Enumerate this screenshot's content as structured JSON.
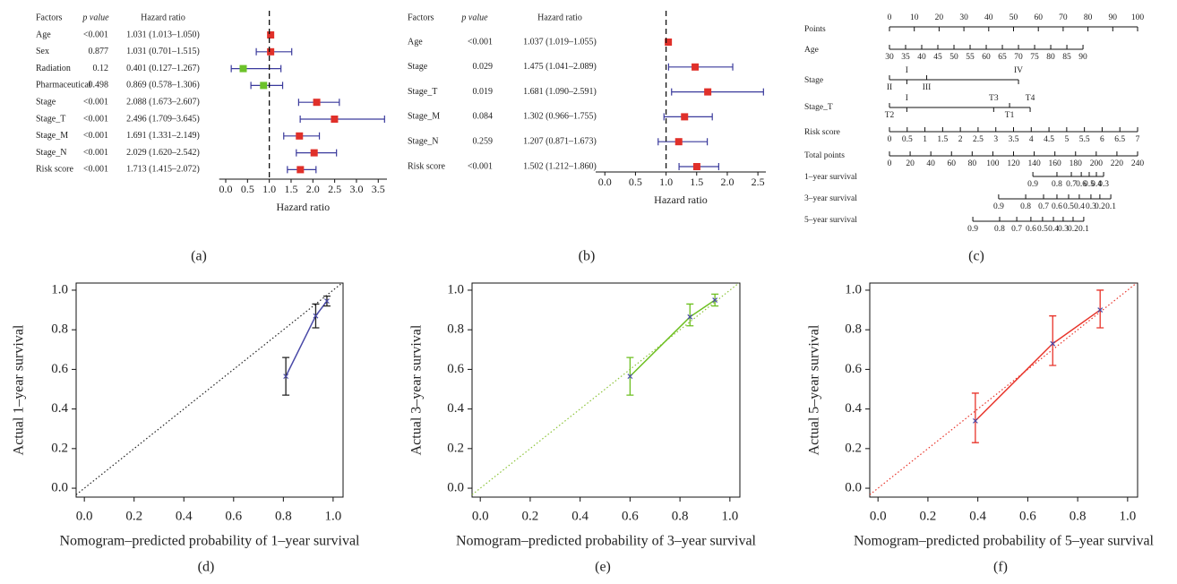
{
  "chart_data": [
    {
      "type": "forest",
      "panel": "(a)",
      "columns": [
        "Factors",
        "p value",
        "Hazard ratio"
      ],
      "factors": [
        "Age",
        "Sex",
        "Radiation",
        "Pharmaceutical",
        "Stage",
        "Stage_T",
        "Stage_M",
        "Stage_N",
        "Risk score"
      ],
      "p_values": [
        "<0.001",
        0.877,
        0.12,
        0.498,
        "<0.001",
        "<0.001",
        "<0.001",
        "<0.001",
        "<0.001"
      ],
      "hr": [
        1.031,
        1.031,
        0.401,
        0.869,
        2.088,
        2.496,
        1.691,
        2.029,
        1.713
      ],
      "lower": [
        1.013,
        0.701,
        0.127,
        0.578,
        1.673,
        1.709,
        1.331,
        1.62,
        1.415
      ],
      "upper": [
        1.05,
        1.515,
        1.267,
        1.306,
        2.607,
        3.645,
        2.149,
        2.542,
        2.072
      ],
      "hr_labels": [
        "1.031 (1.013–1.050)",
        "1.031 (0.701–1.515)",
        "0.401 (0.127–1.267)",
        "0.869 (0.578–1.306)",
        "2.088 (1.673–2.607)",
        "2.496 (1.709–3.645)",
        "1.691 (1.331–2.149)",
        "2.029 (1.620–2.542)",
        "1.713 (1.415–2.072)"
      ],
      "colors": [
        "#e0302a",
        "#e0302a",
        "#6cc22a",
        "#6cc22a",
        "#e0302a",
        "#e0302a",
        "#e0302a",
        "#e0302a",
        "#e0302a"
      ],
      "error_color": "#3a3a9c",
      "reference": 1,
      "xlim": [
        -0.15,
        3.7
      ],
      "xticks": [
        {
          "value": 0,
          "label": "0.0"
        },
        0.5,
        {
          "value": 1,
          "label": "1.0"
        },
        1.5,
        {
          "value": 2,
          "label": "2.0"
        },
        2.5,
        {
          "value": 3,
          "label": "3.0"
        },
        3.5
      ],
      "xlabel": "Hazard ratio"
    },
    {
      "type": "forest",
      "panel": "(b)",
      "columns": [
        "Factors",
        "p value",
        "Hazard ratio"
      ],
      "factors": [
        "Age",
        "Stage",
        "Stage_T",
        "Stage_M",
        "Stage_N",
        "Risk score"
      ],
      "p_values": [
        "<0.001",
        0.029,
        0.019,
        0.084,
        0.259,
        "<0.001"
      ],
      "hr": [
        1.037,
        1.475,
        1.681,
        1.302,
        1.207,
        1.502
      ],
      "lower": [
        1.019,
        1.041,
        1.09,
        0.966,
        0.871,
        1.212
      ],
      "upper": [
        1.055,
        2.089,
        2.591,
        1.755,
        1.673,
        1.86
      ],
      "hr_labels": [
        "1.037 (1.019–1.055)",
        "1.475 (1.041–2.089)",
        "1.681 (1.090–2.591)",
        "1.302 (0.966–1.755)",
        "1.207 (0.871–1.673)",
        "1.502 (1.212–1.860)"
      ],
      "colors": [
        "#e0302a",
        "#e0302a",
        "#e0302a",
        "#e0302a",
        "#e0302a",
        "#e0302a"
      ],
      "error_color": "#3a3a9c",
      "reference": 1,
      "xlim": [
        -0.15,
        2.63
      ],
      "xticks": [
        {
          "value": 0,
          "label": "0.0"
        },
        0.5,
        {
          "value": 1,
          "label": "1.0"
        },
        1.5,
        {
          "value": 2,
          "label": "2.0"
        },
        2.5
      ],
      "xlabel": "Hazard ratio"
    },
    {
      "type": "nomogram",
      "panel": "(c)",
      "points_lim": [
        0,
        100
      ],
      "rows": [
        {
          "name": "Points",
          "ticks": [
            0,
            10,
            20,
            30,
            40,
            50,
            60,
            70,
            80,
            90,
            100
          ],
          "below": false
        },
        {
          "name": "Age",
          "ticks": [
            30,
            35,
            40,
            45,
            50,
            55,
            60,
            65,
            70,
            75,
            80,
            85,
            90
          ],
          "pos": [
            0,
            6.5,
            13,
            19.5,
            26,
            32.5,
            39,
            45.5,
            52,
            58.5,
            65,
            71.5,
            78
          ],
          "below": true
        },
        {
          "name": "Stage",
          "ticks": [
            "I",
            "II",
            "III",
            "IV"
          ],
          "pos": [
            7,
            0,
            15,
            52
          ],
          "below": [
            false,
            true,
            true,
            false
          ]
        },
        {
          "name": "Stage_T",
          "ticks": [
            "I",
            "T3",
            "T4",
            "T2",
            "T1"
          ],
          "pos": [
            7,
            42,
            56.7,
            0,
            48.4
          ],
          "below": [
            false,
            false,
            false,
            true,
            true
          ]
        },
        {
          "name": "Risk score",
          "ticks": [
            0,
            0.5,
            1,
            1.5,
            2,
            2.5,
            3,
            3.5,
            4,
            4.5,
            5,
            5.5,
            6,
            6.5,
            7
          ],
          "pos": [
            0,
            7.14,
            14.29,
            21.43,
            28.57,
            35.71,
            42.86,
            50,
            57.14,
            64.29,
            71.43,
            78.57,
            85.71,
            92.86,
            100
          ],
          "below": true
        },
        {
          "name": "Total points",
          "ticks": [
            0,
            20,
            40,
            60,
            80,
            100,
            120,
            140,
            160,
            180,
            200,
            220,
            240
          ],
          "pos": [
            0,
            8.33,
            16.67,
            25,
            33.33,
            41.67,
            50,
            58.33,
            66.67,
            75,
            83.33,
            91.67,
            100
          ],
          "below": true
        },
        {
          "name": "1–year survival",
          "ticks": [
            0.9,
            0.8,
            0.7,
            0.6,
            0.5,
            0.4,
            0.3
          ],
          "pos": [
            57.8,
            67.5,
            73.3,
            77.3,
            80.5,
            83.4,
            86.3
          ],
          "below": true
        },
        {
          "name": "3–year survival",
          "ticks": [
            0.9,
            0.8,
            0.7,
            0.6,
            0.5,
            0.4,
            0.3,
            0.2,
            0.1
          ],
          "pos": [
            44,
            54.9,
            62.1,
            67.5,
            72.2,
            76.5,
            81.2,
            84.8,
            89.2
          ],
          "below": true
        },
        {
          "name": "5–year survival",
          "ticks": [
            0.9,
            0.8,
            0.7,
            0.6,
            0.5,
            0.4,
            0.3,
            0.2,
            0.1
          ],
          "pos": [
            33.6,
            44.4,
            51.3,
            57,
            61.7,
            66.1,
            70,
            74,
            78.3
          ],
          "below": true
        }
      ]
    },
    {
      "type": "calibration",
      "panel": "(d)",
      "x": [
        0.81,
        0.93,
        0.975
      ],
      "y": [
        0.565,
        0.87,
        0.945
      ],
      "lower": [
        0.47,
        0.81,
        0.92
      ],
      "upper": [
        0.66,
        0.93,
        0.97
      ],
      "color": "#4a4aa8",
      "error_color": "#222222",
      "diagonal_color": "#222222",
      "marker_color": "#4a4aa8",
      "xlim": [
        -0.033,
        1.04
      ],
      "ylim": [
        -0.045,
        1.036
      ],
      "xticks": [
        {
          "value": 0,
          "label": "0.0"
        },
        0.2,
        0.4,
        0.6,
        0.8,
        {
          "value": 1,
          "label": "1.0"
        }
      ],
      "yticks": [
        {
          "value": 0,
          "label": "0.0"
        },
        0.2,
        0.4,
        0.6,
        0.8,
        {
          "value": 1,
          "label": "1.0"
        }
      ],
      "xlabel": "Nomogram–predicted probability of 1–year survival",
      "ylabel": "Actual 1–year survival"
    },
    {
      "type": "calibration",
      "panel": "(e)",
      "x": [
        0.6,
        0.84,
        0.94
      ],
      "y": [
        0.565,
        0.865,
        0.95
      ],
      "lower": [
        0.47,
        0.82,
        0.92
      ],
      "upper": [
        0.66,
        0.93,
        0.98
      ],
      "color": "#6cbf1f",
      "error_color": "#6cbf1f",
      "diagonal_color": "#8cc43a",
      "marker_color": "#4a4aa8",
      "xlim": [
        -0.033,
        1.04
      ],
      "ylim": [
        -0.045,
        1.036
      ],
      "xticks": [
        {
          "value": 0,
          "label": "0.0"
        },
        0.2,
        0.4,
        0.6,
        0.8,
        {
          "value": 1,
          "label": "1.0"
        }
      ],
      "yticks": [
        {
          "value": 0,
          "label": "0.0"
        },
        0.2,
        0.4,
        0.6,
        0.8,
        {
          "value": 1,
          "label": "1.0"
        }
      ],
      "xlabel": "Nomogram–predicted probability of 3–year survival",
      "ylabel": "Actual 3–year survival"
    },
    {
      "type": "calibration",
      "panel": "(f)",
      "x": [
        0.39,
        0.7,
        0.89
      ],
      "y": [
        0.34,
        0.73,
        0.9
      ],
      "lower": [
        0.23,
        0.62,
        0.81
      ],
      "upper": [
        0.48,
        0.87,
        1.0
      ],
      "color": "#e8342a",
      "error_color": "#e8342a",
      "diagonal_color": "#e8342a",
      "marker_color": "#4a4aa8",
      "xlim": [
        -0.033,
        1.04
      ],
      "ylim": [
        -0.045,
        1.036
      ],
      "xticks": [
        {
          "value": 0,
          "label": "0.0"
        },
        0.2,
        0.4,
        0.6,
        0.8,
        {
          "value": 1,
          "label": "1.0"
        }
      ],
      "yticks": [
        {
          "value": 0,
          "label": "0.0"
        },
        0.2,
        0.4,
        0.6,
        0.8,
        {
          "value": 1,
          "label": "1.0"
        }
      ],
      "xlabel": "Nomogram–predicted probability of 5–year survival",
      "ylabel": "Actual 5–year survival"
    }
  ]
}
